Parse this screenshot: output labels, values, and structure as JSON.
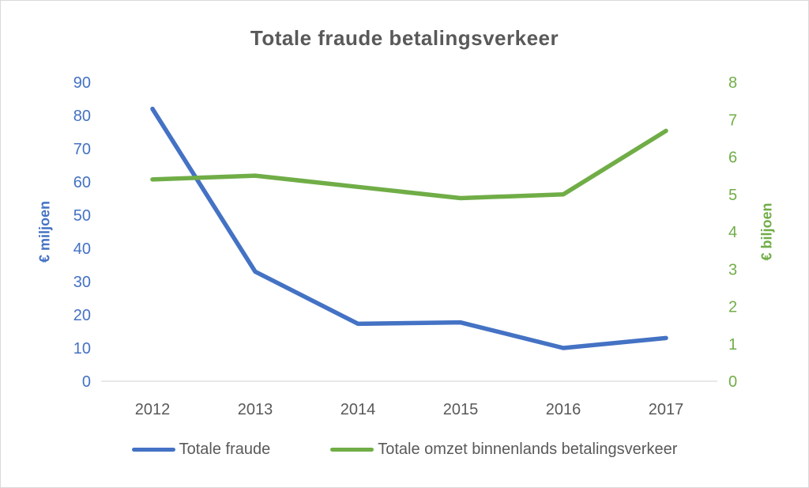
{
  "chart_data": {
    "type": "line",
    "title": "Totale fraude betalingsverkeer",
    "categories": [
      "2012",
      "2013",
      "2014",
      "2015",
      "2016",
      "2017"
    ],
    "series": [
      {
        "name": "Totale fraude",
        "axis": "left",
        "color": "#4472C4",
        "values": [
          82,
          33,
          17.3,
          17.7,
          10,
          13
        ]
      },
      {
        "name": "Totale omzet binnenlands betalingsverkeer",
        "axis": "right",
        "color": "#70AD47",
        "values": [
          5.4,
          5.5,
          5.2,
          4.9,
          5.0,
          6.7
        ]
      }
    ],
    "left_axis": {
      "label": "€ miljoen",
      "min": 0,
      "max": 90,
      "step": 10,
      "color": "#4472C4"
    },
    "right_axis": {
      "label": "€ biljoen",
      "min": 0,
      "max": 8,
      "step": 1,
      "color": "#70AD47"
    },
    "x_axis": {
      "tick_color": "#595959",
      "line_color": "#D9D9D9"
    },
    "grid": false,
    "legend_position": "bottom",
    "title_color": "#595959"
  }
}
